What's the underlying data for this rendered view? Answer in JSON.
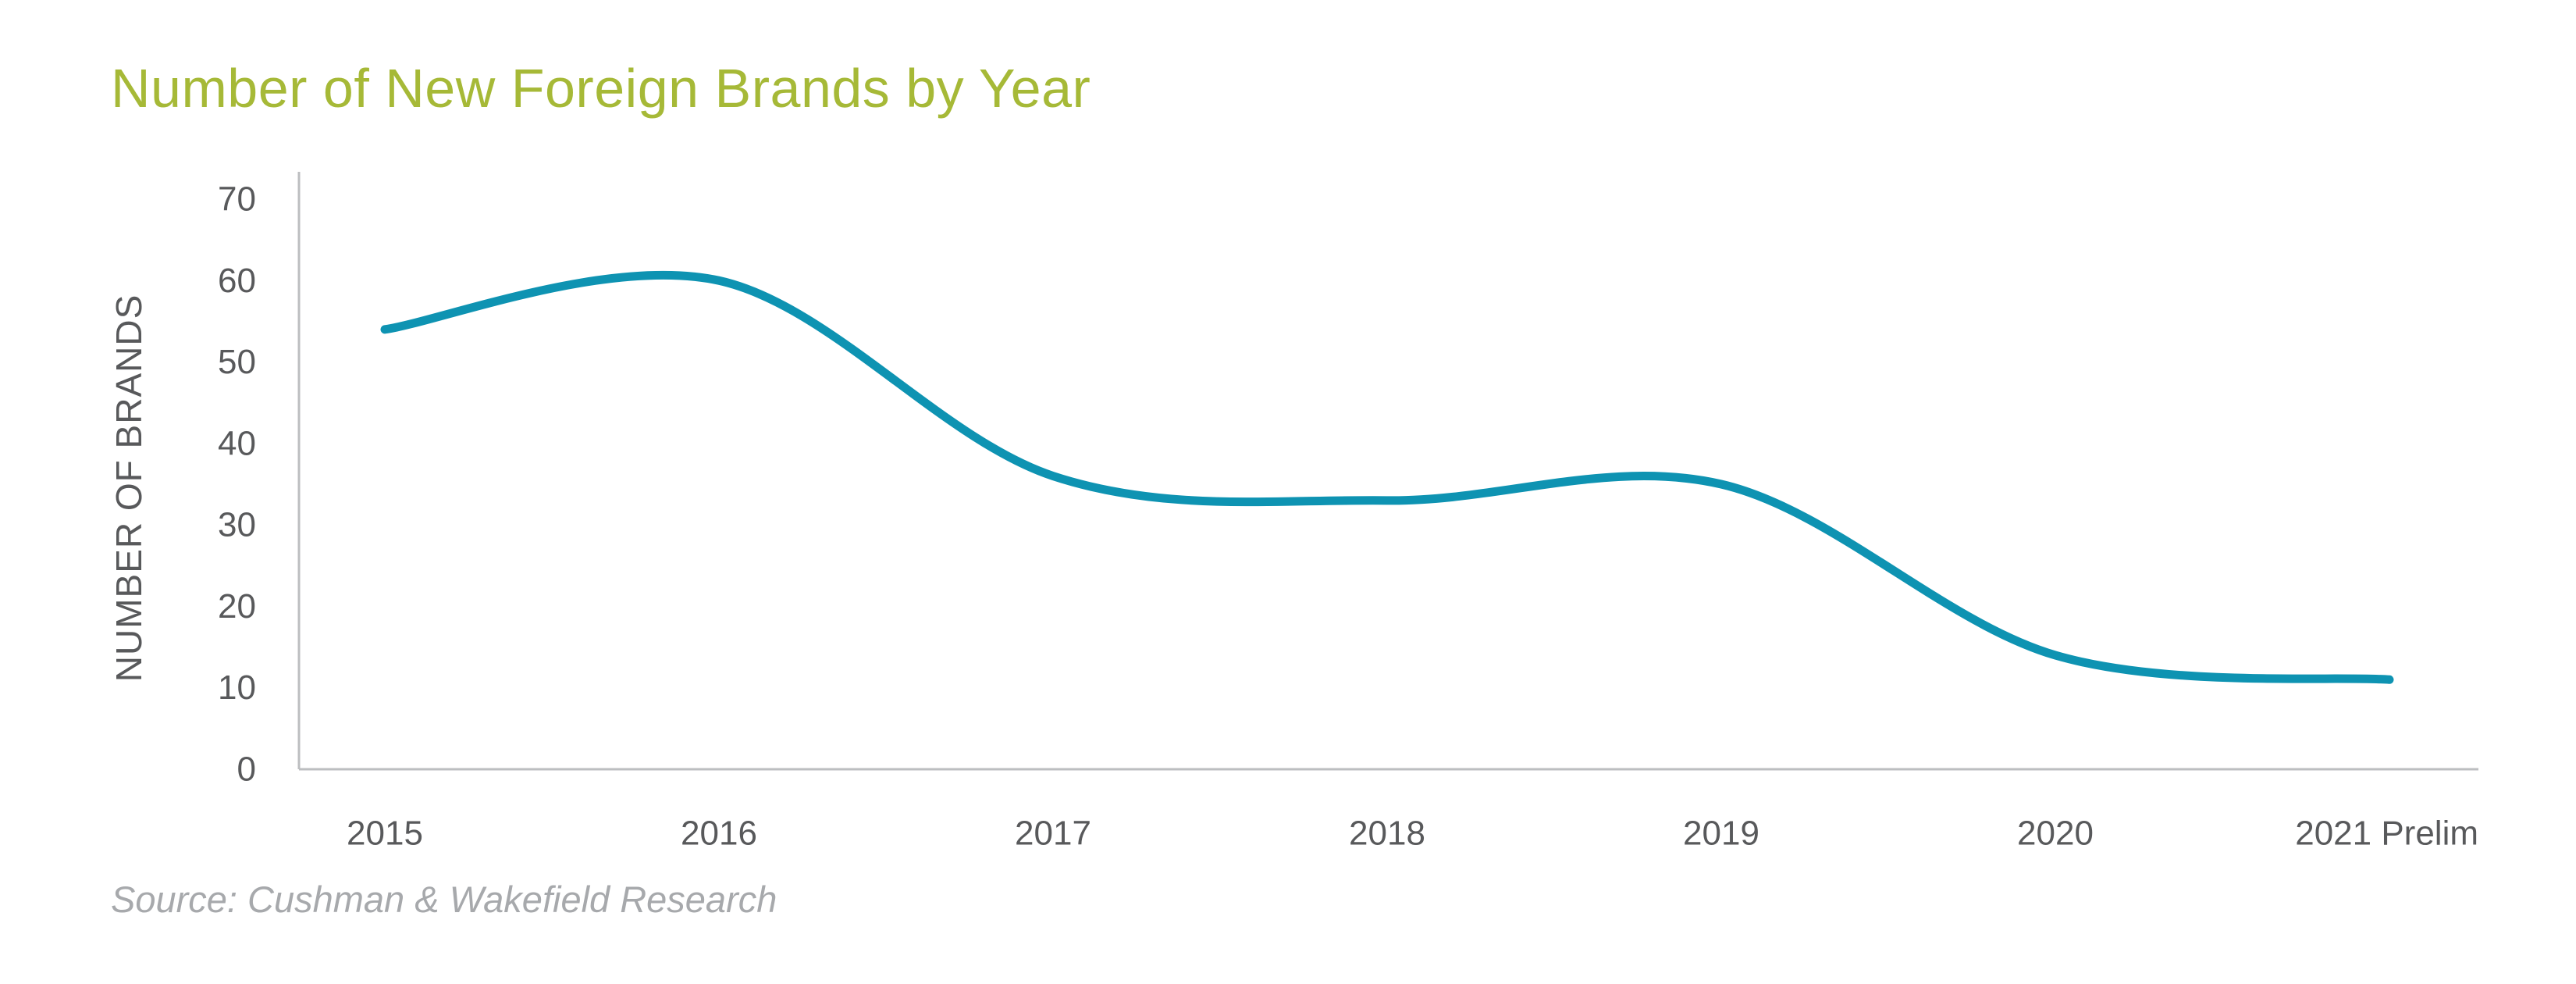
{
  "colors": {
    "title": "#a6b937",
    "line": "#0e93b2",
    "axis": "#bcbec0",
    "text": "#58595b",
    "source": "#a7a9ac"
  },
  "chart_data": {
    "type": "line",
    "title": "Number of New Foreign Brands by Year",
    "source": "Source: Cushman & Wakefield Research",
    "xlabel": "",
    "ylabel": "NUMBER OF BRANDS",
    "categories": [
      "2015",
      "2016",
      "2017",
      "2018",
      "2019",
      "2020",
      "2021 Prelim"
    ],
    "series": [
      {
        "values": [
          54,
          60,
          36,
          33,
          35,
          14,
          11
        ]
      }
    ],
    "ylim": [
      0,
      70
    ],
    "yticks": [
      0,
      10,
      20,
      30,
      40,
      50,
      60,
      70
    ],
    "smooth": true,
    "grid": false,
    "legend": "none"
  }
}
